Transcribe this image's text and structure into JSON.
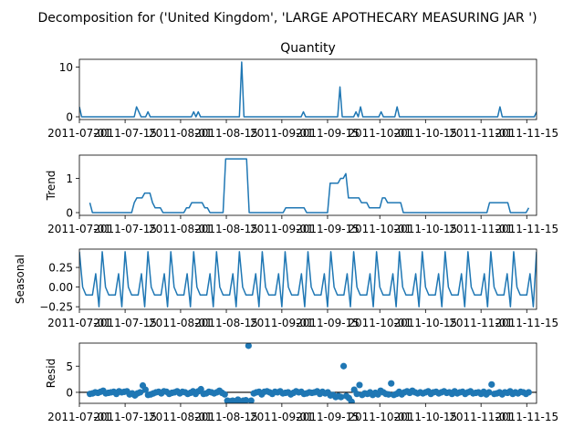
{
  "figure": {
    "title": "Decomposition for ('United Kingdom', 'LARGE APOTHECARY MEASURING JAR ')"
  },
  "colors": {
    "line": "#1f77b4",
    "marker": "#1f77b4",
    "zero_line": "#000000"
  },
  "chart_data": [
    {
      "type": "line",
      "title": "Quantity",
      "ylabel": "",
      "ylim": [
        -0.55,
        11.55
      ],
      "yticks": [
        0,
        10
      ],
      "xticks": [
        "2011-07-01",
        "2011-07-15",
        "2011-08-01",
        "2011-08-15",
        "2011-09-01",
        "2011-09-15",
        "2011-10-01",
        "2011-10-15",
        "2011-11-01",
        "2011-11-15"
      ],
      "x_index": "0 = 2011-07-01, one step per day, last = 2011-11-18",
      "series": [
        {
          "values": [
            2,
            0,
            0,
            0,
            0,
            0,
            0,
            0,
            0,
            0,
            0,
            0,
            0,
            0,
            0,
            0,
            0,
            0,
            0,
            0,
            0,
            0,
            0,
            0,
            0,
            2,
            1,
            0,
            0,
            0,
            1,
            0,
            0,
            0,
            0,
            0,
            0,
            0,
            0,
            0,
            0,
            0,
            0,
            0,
            0,
            0,
            0,
            0,
            0,
            0,
            1,
            0,
            1,
            0,
            0,
            0,
            0,
            0,
            0,
            0,
            0,
            0,
            0,
            0,
            0,
            0,
            0,
            0,
            0,
            0,
            0,
            11,
            0,
            0,
            0,
            0,
            0,
            0,
            0,
            0,
            0,
            0,
            0,
            0,
            0,
            0,
            0,
            0,
            0,
            0,
            0,
            0,
            0,
            0,
            0,
            0,
            0,
            0,
            1,
            0,
            0,
            0,
            0,
            0,
            0,
            0,
            0,
            0,
            0,
            0,
            0,
            0,
            0,
            0,
            6,
            0,
            0,
            0,
            0,
            0,
            0,
            1,
            0,
            2,
            0,
            0,
            0,
            0,
            0,
            0,
            0,
            0,
            1,
            0,
            0,
            0,
            0,
            0,
            0,
            2,
            0,
            0,
            0,
            0,
            0,
            0,
            0,
            0,
            0,
            0,
            0,
            0,
            0,
            0,
            0,
            0,
            0,
            0,
            0,
            0,
            0,
            0,
            0,
            0,
            0,
            0,
            0,
            0,
            0,
            0,
            0,
            0,
            0,
            0,
            0,
            0,
            0,
            0,
            0,
            0,
            0,
            0,
            0,
            0,
            2,
            0,
            0,
            0,
            0,
            0,
            0,
            0,
            0,
            0,
            0,
            0,
            0,
            0,
            0,
            0,
            1
          ]
        }
      ]
    },
    {
      "type": "line",
      "title": "",
      "ylabel": "Trend",
      "ylim": [
        -0.08,
        1.68
      ],
      "yticks": [
        0,
        1
      ],
      "xticks": [
        "2011-07-01",
        "2011-07-15",
        "2011-08-01",
        "2011-08-15",
        "2011-09-01",
        "2011-09-15",
        "2011-10-01",
        "2011-10-15",
        "2011-11-01",
        "2011-11-15"
      ],
      "series": [
        {
          "values": [
            null,
            null,
            null,
            null,
            0.29,
            0,
            0,
            0,
            0,
            0,
            0,
            0,
            0,
            0,
            0,
            0,
            0,
            0,
            0,
            0,
            0,
            0.29,
            0.43,
            0.43,
            0.43,
            0.57,
            0.57,
            0.57,
            0.29,
            0.14,
            0.14,
            0.14,
            0,
            0,
            0,
            0,
            0,
            0,
            0,
            0,
            0,
            0.14,
            0.14,
            0.29,
            0.29,
            0.29,
            0.29,
            0.29,
            0.14,
            0.14,
            0,
            0,
            0,
            0,
            0,
            0,
            1.57,
            1.57,
            1.57,
            1.57,
            1.57,
            1.57,
            1.57,
            1.57,
            1.57,
            0,
            0,
            0,
            0,
            0,
            0,
            0,
            0,
            0,
            0,
            0,
            0,
            0,
            0,
            0.14,
            0.14,
            0.14,
            0.14,
            0.14,
            0.14,
            0.14,
            0.14,
            0,
            0,
            0,
            0,
            0,
            0,
            0,
            0,
            0,
            0.86,
            0.86,
            0.86,
            0.86,
            1,
            1,
            1.14,
            0.43,
            0.43,
            0.43,
            0.43,
            0.43,
            0.29,
            0.29,
            0.29,
            0.14,
            0.14,
            0.14,
            0.14,
            0.14,
            0.43,
            0.43,
            0.29,
            0.29,
            0.29,
            0.29,
            0.29,
            0.29,
            0,
            0,
            0,
            0,
            0,
            0,
            0,
            0,
            0,
            0,
            0,
            0,
            0,
            0,
            0,
            0,
            0,
            0,
            0,
            0,
            0,
            0,
            0,
            0,
            0,
            0,
            0,
            0,
            0,
            0,
            0,
            0,
            0,
            0.29,
            0.29,
            0.29,
            0.29,
            0.29,
            0.29,
            0.29,
            0.29,
            0,
            0,
            0,
            0,
            0,
            0,
            0,
            0.14,
            null,
            null,
            null
          ]
        }
      ]
    },
    {
      "type": "line",
      "title": "",
      "ylabel": "Seasonal",
      "ylim": [
        -0.283,
        0.483
      ],
      "yticks": [
        -0.25,
        0.0,
        0.25
      ],
      "ytick_labels": [
        "−0.25",
        "0.00",
        "0.25"
      ],
      "xticks": [
        "2011-07-01",
        "2011-07-15",
        "2011-08-01",
        "2011-08-15",
        "2011-09-01",
        "2011-09-15",
        "2011-10-01",
        "2011-10-15",
        "2011-11-01",
        "2011-11-15"
      ],
      "period": 7,
      "series": [
        {
          "values_one_period": [
            0.45,
            0.0,
            -0.1,
            -0.1,
            -0.1,
            0.17,
            -0.25
          ]
        }
      ]
    },
    {
      "type": "scatter",
      "title": "",
      "ylabel": "Resid",
      "ylim": [
        -2.1,
        9.4
      ],
      "yticks": [
        0,
        5
      ],
      "xticks": [
        "2011-07-01",
        "2011-07-15",
        "2011-08-01",
        "2011-08-15",
        "2011-09-01",
        "2011-09-15",
        "2011-10-01",
        "2011-10-15",
        "2011-11-01",
        "2011-11-15"
      ],
      "zero_line": true,
      "series": [
        {
          "values": [
            null,
            null,
            null,
            null,
            -0.3,
            -0.2,
            0,
            -0.1,
            0.1,
            0.3,
            -0.2,
            -0.1,
            0,
            0.1,
            -0.3,
            0.2,
            0,
            0.1,
            0.2,
            -0.4,
            -0.2,
            -0.6,
            -0.2,
            0,
            1.3,
            0.5,
            -0.5,
            -0.4,
            -0.2,
            0,
            0.1,
            -0.2,
            0.2,
            0.1,
            -0.3,
            -0.1,
            0,
            0.2,
            -0.2,
            0.1,
            0,
            -0.3,
            -0.1,
            0.2,
            -0.3,
            0.2,
            0.6,
            -0.3,
            -0.2,
            0.1,
            0,
            -0.2,
            0,
            0.3,
            -0.1,
            -0.4,
            -1.6,
            -1.7,
            -1.6,
            -1.7,
            -1.4,
            -1.8,
            -1.6,
            -1.5,
            8.9,
            -1.6,
            -0.2,
            0,
            0.1,
            -0.4,
            0.1,
            0.2,
            0,
            -0.3,
            0.1,
            0,
            0.2,
            -0.2,
            -0.1,
            0,
            -0.4,
            -0.1,
            0.2,
            0,
            0.1,
            -0.3,
            -0.2,
            0,
            -0.1,
            0,
            0.2,
            -0.3,
            0.1,
            -0.2,
            0,
            -0.6,
            -0.5,
            -0.9,
            -0.7,
            -0.9,
            5.0,
            -0.7,
            -1.1,
            -1.8,
            0.5,
            -0.3,
            1.4,
            -0.5,
            -0.2,
            -0.3,
            0,
            -0.5,
            -0.1,
            -0.4,
            0.3,
            0,
            -0.3,
            -0.4,
            1.7,
            -0.5,
            -0.3,
            0.1,
            -0.4,
            0,
            0.2,
            -0.1,
            0.3,
            0,
            -0.2,
            0,
            -0.2,
            0,
            0.2,
            -0.3,
            0,
            0.1,
            -0.2,
            0,
            0.2,
            -0.1,
            0,
            -0.3,
            0.2,
            -0.2,
            0,
            0.1,
            -0.3,
            0,
            0.2,
            -0.2,
            -0.1,
            0,
            -0.3,
            0.1,
            -0.4,
            0,
            1.5,
            -0.3,
            -0.2,
            0,
            -0.4,
            0,
            -0.1,
            0.2,
            -0.3,
            0,
            -0.2,
            0.1,
            0,
            -0.3,
            0,
            null,
            null,
            null
          ]
        }
      ]
    }
  ]
}
